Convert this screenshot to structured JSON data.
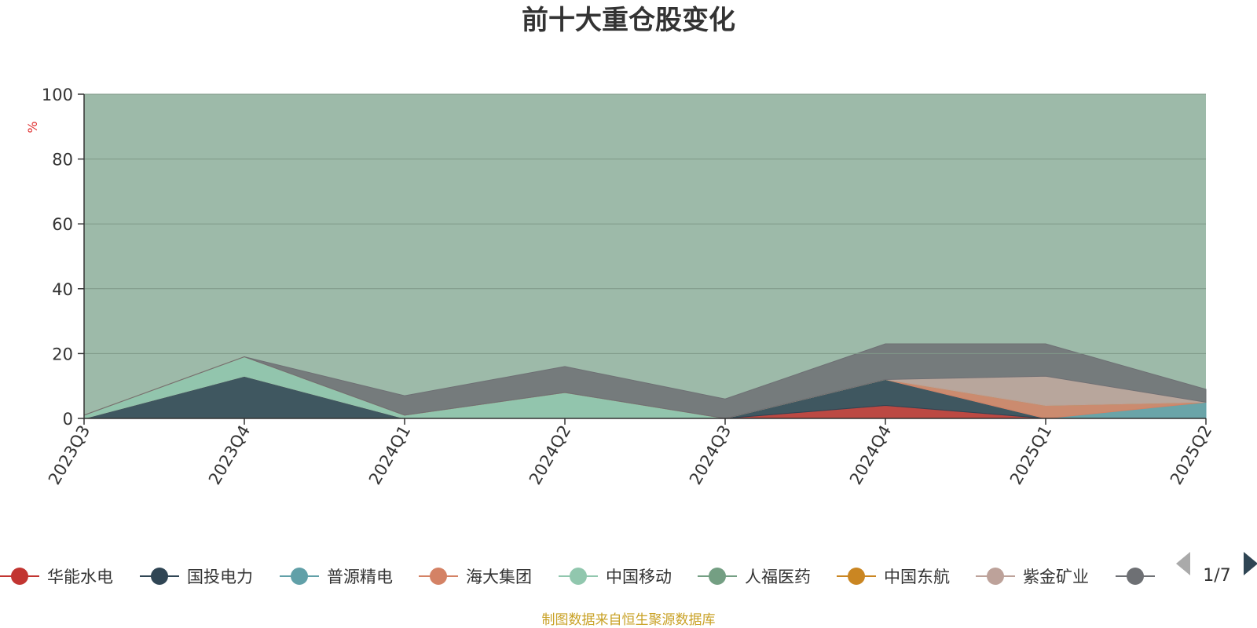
{
  "chart_data": {
    "type": "area",
    "title": "前十大重仓股变化",
    "ylabel": "%",
    "ylim": [
      0,
      100
    ],
    "yticks": [
      0,
      20,
      40,
      60,
      80,
      100
    ],
    "grid": true,
    "legend_placement": "bottom",
    "x": [
      "2023Q3",
      "2023Q4",
      "2024Q1",
      "2024Q2",
      "2024Q3",
      "2024Q4",
      "2025Q1",
      "2025Q2"
    ],
    "series": [
      {
        "name": "华能水电",
        "color": "#c23531",
        "values": [
          0,
          0,
          0,
          0,
          0,
          4,
          0,
          0
        ]
      },
      {
        "name": "国投电力",
        "color": "#2f4554",
        "values": [
          0,
          13,
          0,
          0,
          0,
          8,
          0,
          0
        ]
      },
      {
        "name": "普源精电",
        "color": "#61a0a8",
        "values": [
          0,
          0,
          0,
          0,
          0,
          0,
          0,
          5
        ]
      },
      {
        "name": "海大集团",
        "color": "#d48265",
        "values": [
          0,
          0,
          0,
          0,
          0,
          0,
          4,
          0
        ]
      },
      {
        "name": "中国移动",
        "color": "#91c7ae",
        "values": [
          1,
          6,
          1,
          8,
          0,
          0,
          0,
          0
        ]
      },
      {
        "name": "人福医药",
        "color": "#749f83",
        "values": [
          0,
          0,
          0,
          0,
          0,
          0,
          0,
          0
        ]
      },
      {
        "name": "中国东航",
        "color": "#ca8622",
        "values": [
          0,
          0,
          0,
          0,
          0,
          0,
          0,
          0
        ]
      },
      {
        "name": "紫金矿业",
        "color": "#bda29a",
        "values": [
          0,
          0,
          0,
          0,
          0,
          0,
          9,
          0
        ]
      },
      {
        "name": "",
        "color": "#6e7074",
        "values": [
          0,
          0,
          6,
          8,
          6,
          11,
          10,
          4
        ]
      }
    ],
    "legend_page": "1/7",
    "source_note": "制图数据来自恒生聚源数据库"
  }
}
